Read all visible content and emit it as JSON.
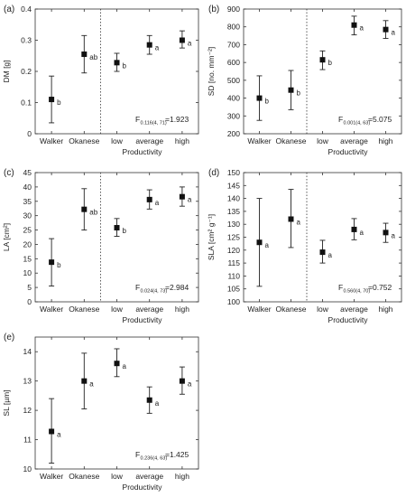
{
  "figure": {
    "category_axis_label": "Productivity"
  },
  "chart_data": [
    {
      "panel_label": "(a)",
      "type": "scatter",
      "plot": "mean with error bars",
      "ylabel": "DM [g]",
      "ylim": [
        0,
        0.4
      ],
      "yticks": [
        "0",
        "0.1",
        "0.2",
        "0.3",
        "0.4"
      ],
      "categories": [
        "Walker",
        "Okanese",
        "low",
        "average",
        "high"
      ],
      "xlabel": "Productivity",
      "means": [
        0.11,
        0.255,
        0.228,
        0.285,
        0.3
      ],
      "err_low": [
        0.035,
        0.195,
        0.2,
        0.255,
        0.275
      ],
      "err_high": [
        0.185,
        0.315,
        0.258,
        0.315,
        0.33
      ],
      "letters": [
        "b",
        "ab",
        "b",
        "a",
        "a"
      ],
      "stat_F": "F",
      "stat_sub": "0.116(4, 71)",
      "stat_val": "=1.923",
      "divider_after": "Okanese"
    },
    {
      "panel_label": "(b)",
      "type": "scatter",
      "plot": "mean with error bars",
      "ylabel": "SD [no. mm⁻²]",
      "ylim": [
        200,
        900
      ],
      "yticks": [
        "200",
        "300",
        "400",
        "500",
        "600",
        "700",
        "800",
        "900"
      ],
      "categories": [
        "Walker",
        "Okanese",
        "low",
        "average",
        "high"
      ],
      "xlabel": "Productivity",
      "means": [
        400,
        445,
        615,
        810,
        785
      ],
      "err_low": [
        275,
        335,
        560,
        755,
        735
      ],
      "err_high": [
        525,
        555,
        665,
        860,
        835
      ],
      "letters": [
        "b",
        "b",
        "b",
        "a",
        "a"
      ],
      "stat_F": "F",
      "stat_sub": "0.001(4, 63)",
      "stat_val": "=5.075",
      "divider_after": "Okanese"
    },
    {
      "panel_label": "(c)",
      "type": "scatter",
      "plot": "mean with error bars",
      "ylabel": "LA [cm²]",
      "ylim": [
        0,
        45
      ],
      "yticks": [
        "0",
        "5",
        "10",
        "15",
        "20",
        "25",
        "30",
        "35",
        "40",
        "45"
      ],
      "categories": [
        "Walker",
        "Okanese",
        "low",
        "average",
        "high"
      ],
      "xlabel": "Productivity",
      "means": [
        13.8,
        32.2,
        25.8,
        35.6,
        36.6
      ],
      "err_low": [
        5.5,
        25,
        22.8,
        32.3,
        33.3
      ],
      "err_high": [
        22,
        39.4,
        29,
        39,
        40
      ],
      "letters": [
        "b",
        "ab",
        "b",
        "a",
        "a"
      ],
      "stat_F": "F",
      "stat_sub": "0.024(4, 73)",
      "stat_val": "=2.984",
      "divider_after": "Okanese"
    },
    {
      "panel_label": "(d)",
      "type": "scatter",
      "plot": "mean with error bars",
      "ylabel": "SLA [cm² g⁻¹]",
      "ylim": [
        100,
        150
      ],
      "yticks": [
        "100",
        "105",
        "110",
        "115",
        "120",
        "125",
        "130",
        "135",
        "140",
        "145",
        "150"
      ],
      "categories": [
        "Walker",
        "Okanese",
        "low",
        "average",
        "high"
      ],
      "xlabel": "Productivity",
      "means": [
        123,
        132,
        119.2,
        128,
        126.8
      ],
      "err_low": [
        106,
        121,
        115,
        124,
        123
      ],
      "err_high": [
        140,
        143.5,
        123.8,
        132.2,
        130.4
      ],
      "letters": [
        "a",
        "a",
        "a",
        "a",
        "a"
      ],
      "stat_F": "F",
      "stat_sub": "0.560(4, 70)",
      "stat_val": "=0.752",
      "divider_after": "Okanese"
    },
    {
      "panel_label": "(e)",
      "type": "scatter",
      "plot": "mean with error bars",
      "ylabel": "SL [µm]",
      "ylim": [
        10,
        14.5
      ],
      "yticks": [
        "10",
        "11",
        "12",
        "13",
        "14"
      ],
      "categories": [
        "Walker",
        "Okanese",
        "low",
        "average",
        "high"
      ],
      "xlabel": "Productivity",
      "means": [
        11.28,
        13.0,
        13.6,
        12.35,
        13.0
      ],
      "err_low": [
        10.2,
        12.05,
        13.15,
        11.9,
        12.55
      ],
      "err_high": [
        12.4,
        13.95,
        14.1,
        12.8,
        13.48
      ],
      "letters": [
        "a",
        "a",
        "a",
        "a",
        "a"
      ],
      "stat_F": "F",
      "stat_sub": "0.236(4, 63)",
      "stat_val": "=1.425",
      "divider_after": null
    }
  ]
}
